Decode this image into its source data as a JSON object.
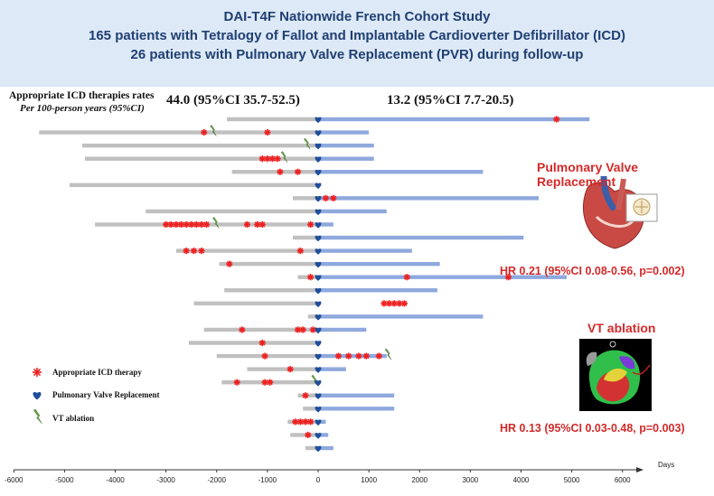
{
  "header": {
    "line1": "DAI-T4F Nationwide French Cohort Study",
    "line2": "165 patients with Tetralogy of Fallot and Implantable Cardioverter Defibrillator (ICD)",
    "line3": "26 patients with Pulmonary Valve Replacement (PVR) during follow-up"
  },
  "rates": {
    "title": "Appropriate ICD therapies rates",
    "subtitle": "Per 100-person years (95%CI)",
    "before": "44.0 (95%CI 35.7-52.5)",
    "after": "13.2 (95%CI 7.7-20.5)"
  },
  "side": {
    "pvr_title": "Pulmonary Valve Replacement",
    "pvr_hr": "HR 0.21 (95%CI 0.08-0.56, p=0.002)",
    "vt_title": "VT ablation",
    "vt_hr": "HR 0.13 (95%CI 0.03-0.48, p=0.003)"
  },
  "legend": {
    "therapy": "Appropriate ICD therapy",
    "pvr": "Pulmonary Valve Replacement",
    "vt": "VT ablation"
  },
  "colors": {
    "pre_bar": "#c0c0c0",
    "post_bar": "#8fa9dd",
    "therapy": "#ee2222",
    "pvr_marker": "#1f4e9a",
    "ablation": "#6aa84f"
  },
  "chart_data": {
    "type": "swimmer",
    "xlabel": "Days",
    "xlim": [
      -6000,
      6500
    ],
    "xticks": [
      -6000,
      -5000,
      -4000,
      -3000,
      -2000,
      -1000,
      0,
      1000,
      2000,
      3000,
      4000,
      5000,
      6000
    ],
    "xtick_labels": [
      "-6000",
      "-5000",
      "-4000",
      "-3000",
      "-2000",
      "-1000",
      "0",
      "1000",
      "2000",
      "3000",
      "4000",
      "5000",
      "6000"
    ],
    "patients": [
      {
        "start": -1800,
        "end": 5350,
        "therapies": [
          4700
        ],
        "ablations": []
      },
      {
        "start": -5500,
        "end": 1000,
        "therapies": [
          -2250,
          -1000
        ],
        "ablations": [
          -2100
        ]
      },
      {
        "start": -4650,
        "end": 1100,
        "therapies": [],
        "ablations": [
          -250
        ]
      },
      {
        "start": -4600,
        "end": 1100,
        "therapies": [
          -1100,
          -1000,
          -900,
          -800
        ],
        "ablations": [
          -700
        ]
      },
      {
        "start": -1700,
        "end": 3250,
        "therapies": [
          -750,
          -400
        ],
        "ablations": []
      },
      {
        "start": -4900,
        "end": 0,
        "therapies": [],
        "ablations": []
      },
      {
        "start": -500,
        "end": 4350,
        "therapies": [
          150,
          300
        ],
        "ablations": []
      },
      {
        "start": -3400,
        "end": 1350,
        "therapies": [],
        "ablations": []
      },
      {
        "start": -4400,
        "end": 300,
        "therapies": [
          -3000,
          -2900,
          -2800,
          -2700,
          -2600,
          -2500,
          -2400,
          -2300,
          -2200,
          -1400,
          -1200,
          -1100,
          -150
        ],
        "ablations": [
          -2050
        ]
      },
      {
        "start": -500,
        "end": 4050,
        "therapies": [],
        "ablations": []
      },
      {
        "start": -2800,
        "end": 1850,
        "therapies": [
          -2600,
          -2450,
          -2300,
          -350
        ],
        "ablations": []
      },
      {
        "start": -1950,
        "end": 2400,
        "therapies": [
          -1750
        ],
        "ablations": []
      },
      {
        "start": -400,
        "end": 4900,
        "therapies": [
          -150,
          1750,
          3750
        ],
        "ablations": []
      },
      {
        "start": -1850,
        "end": 2350,
        "therapies": [],
        "ablations": []
      },
      {
        "start": -2450,
        "end": 0,
        "therapies": [
          1300,
          1400,
          1500,
          1600,
          1700
        ],
        "ablations": []
      },
      {
        "start": -200,
        "end": 3250,
        "therapies": [],
        "ablations": []
      },
      {
        "start": -2250,
        "end": 950,
        "therapies": [
          -1500,
          -400,
          -300,
          -100
        ],
        "ablations": []
      },
      {
        "start": -2550,
        "end": 0,
        "therapies": [
          -1100
        ],
        "ablations": []
      },
      {
        "start": -2000,
        "end": 1350,
        "therapies": [
          -1050,
          400,
          600,
          800,
          950,
          1200
        ],
        "ablations": [
          1350
        ]
      },
      {
        "start": -1400,
        "end": 550,
        "therapies": [
          -550
        ],
        "ablations": []
      },
      {
        "start": -1900,
        "end": 0,
        "therapies": [
          -1600,
          -1050,
          -950
        ],
        "ablations": [
          -100
        ]
      },
      {
        "start": -400,
        "end": 1500,
        "therapies": [
          -250
        ],
        "ablations": []
      },
      {
        "start": -300,
        "end": 1500,
        "therapies": [],
        "ablations": []
      },
      {
        "start": -600,
        "end": 150,
        "therapies": [
          -450,
          -350,
          -250,
          -150
        ],
        "ablations": []
      },
      {
        "start": -550,
        "end": 200,
        "therapies": [
          -200
        ],
        "ablations": []
      },
      {
        "start": -250,
        "end": 300,
        "therapies": [],
        "ablations": []
      }
    ]
  }
}
